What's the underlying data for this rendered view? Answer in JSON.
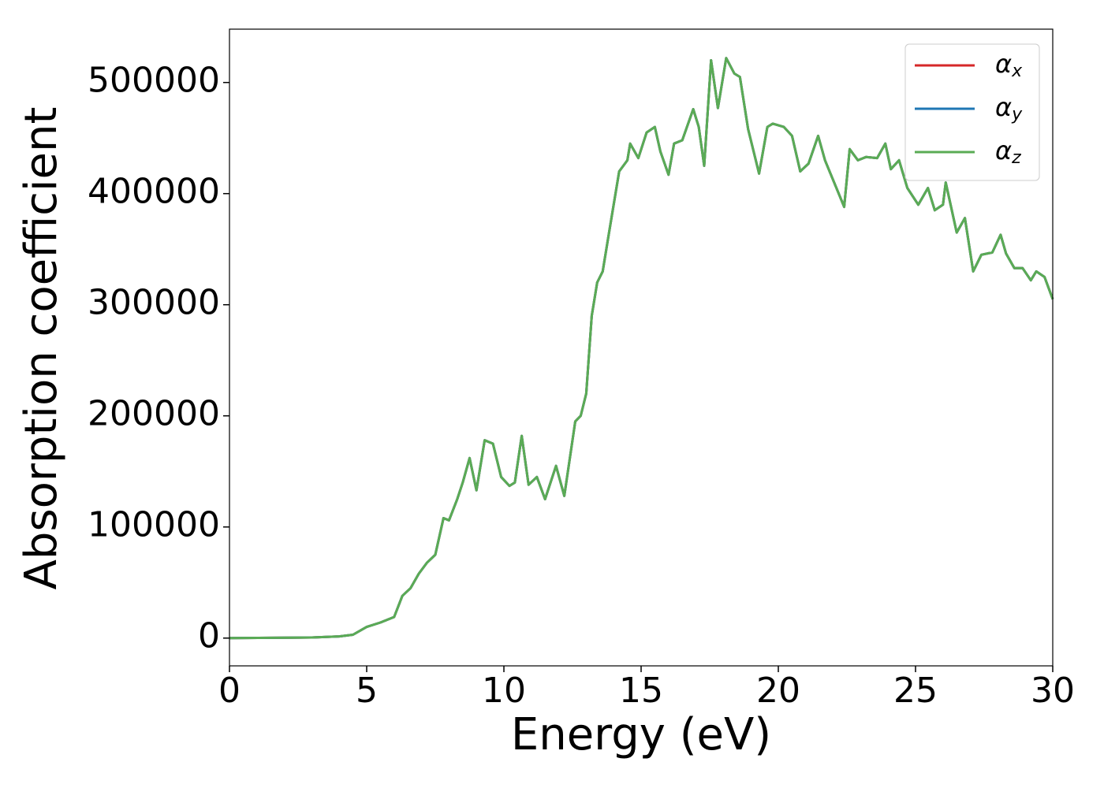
{
  "chart_data": {
    "type": "line",
    "xlabel": "Energy (eV)",
    "ylabel": "Absorption coefficient",
    "xlim": [
      0,
      30
    ],
    "ylim": [
      -25000,
      548000
    ],
    "xticks": [
      0,
      5,
      10,
      15,
      20,
      25,
      30
    ],
    "yticks": [
      0,
      100000,
      200000,
      300000,
      400000,
      500000
    ],
    "legend": "upper right",
    "x": [
      0,
      3,
      4,
      4.5,
      5,
      5.5,
      6,
      6.3,
      6.6,
      6.9,
      7.2,
      7.5,
      7.8,
      8.0,
      8.3,
      8.5,
      8.75,
      9.0,
      9.3,
      9.6,
      9.9,
      10.2,
      10.4,
      10.65,
      10.9,
      11.2,
      11.5,
      11.9,
      12.2,
      12.6,
      12.8,
      13.0,
      13.2,
      13.4,
      13.6,
      13.8,
      14.0,
      14.2,
      14.5,
      14.6,
      14.9,
      15.2,
      15.5,
      15.7,
      16.0,
      16.2,
      16.5,
      16.9,
      17.1,
      17.3,
      17.55,
      17.8,
      18.1,
      18.4,
      18.6,
      18.9,
      19.3,
      19.6,
      19.8,
      20.2,
      20.5,
      20.8,
      21.1,
      21.45,
      21.7,
      22.2,
      22.4,
      22.6,
      22.9,
      23.2,
      23.6,
      23.9,
      24.1,
      24.4,
      24.7,
      25.1,
      25.45,
      25.7,
      26.0,
      26.1,
      26.5,
      26.8,
      27.1,
      27.4,
      27.8,
      28.1,
      28.3,
      28.6,
      28.9,
      29.2,
      29.4,
      29.7,
      30.0
    ],
    "series": [
      {
        "name": "αx",
        "color": "#d62728",
        "values": [
          0,
          500,
          1500,
          3000,
          10000,
          14000,
          19000,
          38000,
          45000,
          58000,
          68000,
          75000,
          108000,
          106000,
          125000,
          140000,
          162000,
          133000,
          178000,
          175000,
          145000,
          137000,
          140000,
          182000,
          138000,
          145000,
          125000,
          155000,
          128000,
          195000,
          200000,
          220000,
          290000,
          320000,
          330000,
          360000,
          390000,
          420000,
          430000,
          445000,
          432000,
          455000,
          460000,
          438000,
          417000,
          445000,
          448000,
          476000,
          460000,
          425000,
          520000,
          477000,
          522000,
          508000,
          505000,
          458000,
          418000,
          460000,
          463000,
          460000,
          452000,
          420000,
          427000,
          452000,
          430000,
          400000,
          388000,
          440000,
          430000,
          433000,
          432000,
          445000,
          422000,
          430000,
          405000,
          390000,
          405000,
          385000,
          390000,
          410000,
          365000,
          378000,
          330000,
          345000,
          347000,
          363000,
          346000,
          333000,
          333000,
          322000,
          330000,
          325000,
          305000
        ]
      },
      {
        "name": "αy",
        "color": "#1f77b4",
        "values": [
          0,
          500,
          1500,
          3000,
          10000,
          14000,
          19000,
          38000,
          45000,
          58000,
          68000,
          75000,
          108000,
          106000,
          125000,
          140000,
          162000,
          133000,
          178000,
          175000,
          145000,
          137000,
          140000,
          182000,
          138000,
          145000,
          125000,
          155000,
          128000,
          195000,
          200000,
          220000,
          290000,
          320000,
          330000,
          360000,
          390000,
          420000,
          430000,
          445000,
          432000,
          455000,
          460000,
          438000,
          417000,
          445000,
          448000,
          476000,
          460000,
          425000,
          520000,
          477000,
          522000,
          508000,
          505000,
          458000,
          418000,
          460000,
          463000,
          460000,
          452000,
          420000,
          427000,
          452000,
          430000,
          400000,
          388000,
          440000,
          430000,
          433000,
          432000,
          445000,
          422000,
          430000,
          405000,
          390000,
          405000,
          385000,
          390000,
          410000,
          365000,
          378000,
          330000,
          345000,
          347000,
          363000,
          346000,
          333000,
          333000,
          322000,
          330000,
          325000,
          305000
        ]
      },
      {
        "name": "αz",
        "color": "#5aab55",
        "values": [
          0,
          500,
          1500,
          3000,
          10000,
          14000,
          19000,
          38000,
          45000,
          58000,
          68000,
          75000,
          108000,
          106000,
          125000,
          140000,
          162000,
          133000,
          178000,
          175000,
          145000,
          137000,
          140000,
          182000,
          138000,
          145000,
          125000,
          155000,
          128000,
          195000,
          200000,
          220000,
          290000,
          320000,
          330000,
          360000,
          390000,
          420000,
          430000,
          445000,
          432000,
          455000,
          460000,
          438000,
          417000,
          445000,
          448000,
          476000,
          460000,
          425000,
          520000,
          477000,
          522000,
          508000,
          505000,
          458000,
          418000,
          460000,
          463000,
          460000,
          452000,
          420000,
          427000,
          452000,
          430000,
          400000,
          388000,
          440000,
          430000,
          433000,
          432000,
          445000,
          422000,
          430000,
          405000,
          390000,
          405000,
          385000,
          390000,
          410000,
          365000,
          378000,
          330000,
          345000,
          347000,
          363000,
          346000,
          333000,
          333000,
          322000,
          330000,
          325000,
          305000
        ]
      }
    ]
  }
}
